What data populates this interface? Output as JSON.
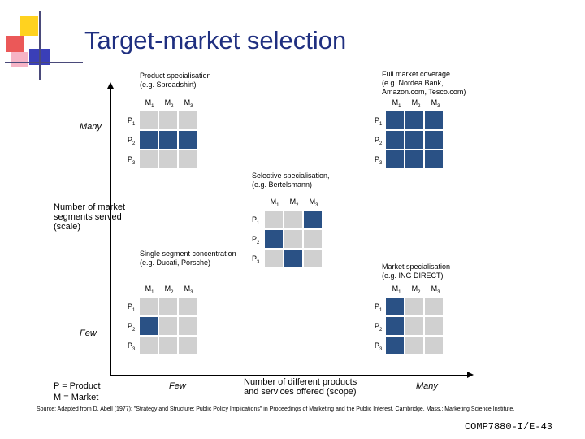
{
  "title": "Target-market selection",
  "colors": {
    "filled": "#2a5185",
    "empty": "#d0d0d0",
    "title": "#1f2f80"
  },
  "y_axis": {
    "label": "Number of market segments served (scale)",
    "top": "Many",
    "bottom": "Few"
  },
  "x_axis": {
    "label": "Number of different products and services offered (scope)",
    "left": "Few",
    "right": "Many"
  },
  "legend": {
    "p": "P = Product",
    "m": "M = Market"
  },
  "markets": [
    "M1",
    "M2",
    "M3"
  ],
  "products": [
    "P1",
    "P2",
    "P3"
  ],
  "matrices": [
    {
      "name": "Product specialisation",
      "caption": "Product specialisation",
      "example": "(e.g. Spreadshirt)",
      "filled": [
        [
          0,
          0,
          0
        ],
        [
          1,
          1,
          1
        ],
        [
          0,
          0,
          0
        ]
      ]
    },
    {
      "name": "Full market coverage",
      "caption": "Full market coverage",
      "example": "(e.g. Nordea Bank, Amazon.com, Tesco.com)",
      "filled": [
        [
          1,
          1,
          1
        ],
        [
          1,
          1,
          1
        ],
        [
          1,
          1,
          1
        ]
      ]
    },
    {
      "name": "Selective specialisation",
      "caption": "Selective specialisation,",
      "example": "(e.g. Bertelsmann)",
      "filled": [
        [
          0,
          0,
          1
        ],
        [
          1,
          0,
          0
        ],
        [
          0,
          1,
          0
        ]
      ]
    },
    {
      "name": "Single segment concentration",
      "caption": "Single segment concentration",
      "example": "(e.g. Ducati, Porsche)",
      "filled": [
        [
          0,
          0,
          0
        ],
        [
          1,
          0,
          0
        ],
        [
          0,
          0,
          0
        ]
      ]
    },
    {
      "name": "Market specialisation",
      "caption": "Market specialisation",
      "example": "(e.g. ING DIRECT)",
      "filled": [
        [
          1,
          0,
          0
        ],
        [
          1,
          0,
          0
        ],
        [
          1,
          0,
          0
        ]
      ]
    }
  ],
  "source": "Source: Adapted from D. Abell (1977); \"Strategy and Structure: Public Policy Implications\" in Proceedings of Marketing and the Public Interest. Cambridge, Mass.: Marketing Science Institute.",
  "page_ref": "COMP7880-I/E-43"
}
